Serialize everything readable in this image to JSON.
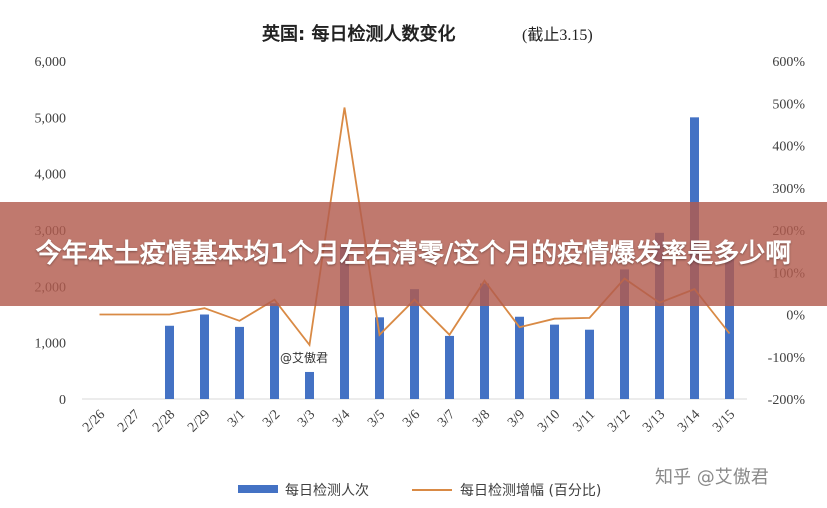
{
  "chart_data": {
    "type": "bar+line",
    "title": "英国: 每日检测人数变化",
    "title_note": "(截止3.15)",
    "categories": [
      "2/26",
      "2/27",
      "2/28",
      "2/29",
      "3/1",
      "3/2",
      "3/3",
      "3/4",
      "3/5",
      "3/6",
      "3/7",
      "3/8",
      "3/9",
      "3/10",
      "3/11",
      "3/12",
      "3/13",
      "3/14",
      "3/15"
    ],
    "series": [
      {
        "name": "每日检测人次",
        "axis": "left",
        "chart": "bar",
        "color": "#4472C4",
        "values": [
          0,
          0,
          1300,
          1500,
          1280,
          1700,
          480,
          2700,
          1450,
          1950,
          1120,
          2050,
          1460,
          1320,
          1230,
          2300,
          2950,
          5000,
          2550
        ]
      },
      {
        "name": "每日检测增幅 (百分比)",
        "axis": "right",
        "chart": "line",
        "color": "#D98A45",
        "values": [
          0,
          0,
          0,
          15,
          -15,
          35,
          -72,
          490,
          -48,
          35,
          -48,
          80,
          -30,
          -10,
          -8,
          85,
          28,
          60,
          -45
        ]
      }
    ],
    "y_left": {
      "min": 0,
      "max": 6000,
      "ticks": [
        "0",
        "1,000",
        "2,000",
        "3,000",
        "4,000",
        "5,000",
        "6,000"
      ]
    },
    "y_right": {
      "min": -200,
      "max": 600,
      "ticks": [
        "-200%",
        "-100%",
        "0%",
        "100%",
        "200%",
        "300%",
        "400%",
        "500%",
        "600%"
      ]
    },
    "legend_position": "bottom",
    "grid": false
  },
  "inline_watermark": "@艾傲君",
  "brand_watermark": "知乎 @艾傲君",
  "banner": {
    "text": "今年本土疫情基本均1个月左右清零/这个月的疫情爆发率是多少啊"
  }
}
